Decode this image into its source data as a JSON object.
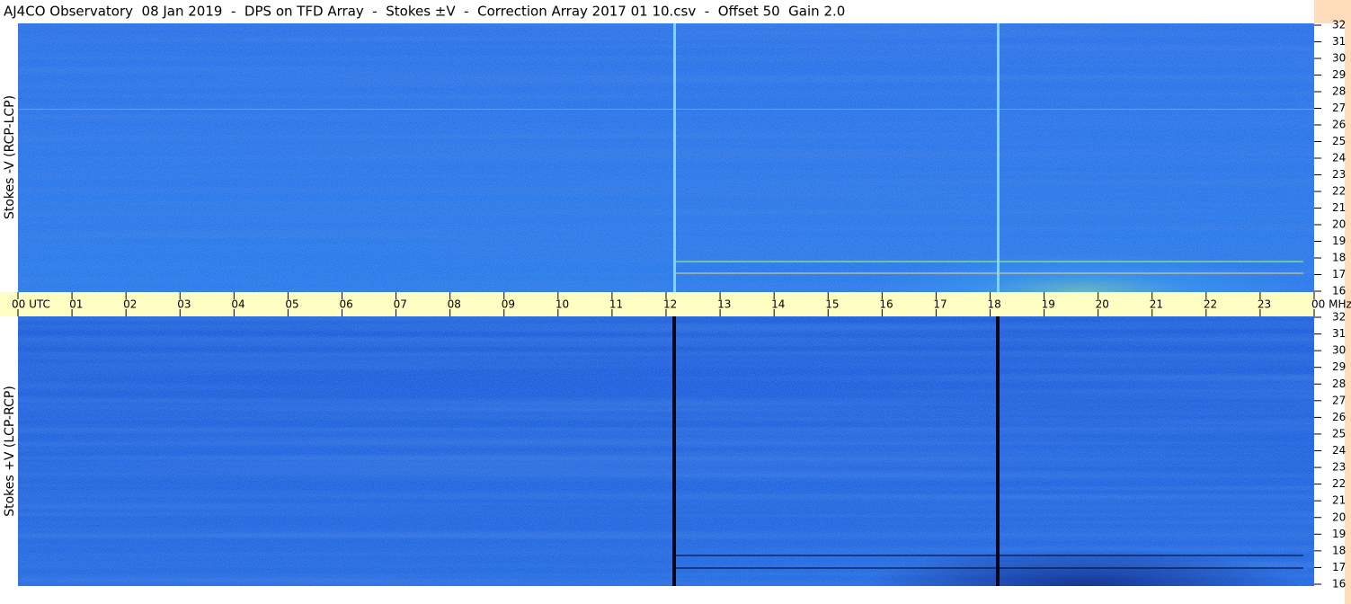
{
  "title": "AJ4CO Observatory  08 Jan 2019  -  DPS on TFD Array  -  Stokes ±V  -  Correction Array 2017 01 10.csv  -  Offset 50  Gain 2.0",
  "panels": [
    {
      "label": "Stokes -V (RCP-LCP)"
    },
    {
      "label": "Stokes +V (LCP-RCP)"
    }
  ],
  "time_axis": {
    "labels": [
      "00 UTC",
      "01",
      "02",
      "03",
      "04",
      "05",
      "06",
      "07",
      "08",
      "09",
      "10",
      "11",
      "12",
      "13",
      "14",
      "15",
      "16",
      "17",
      "18",
      "19",
      "20",
      "21",
      "22",
      "23",
      "00 MHz"
    ]
  },
  "frequency_axis": {
    "labels": [
      16,
      17,
      18,
      19,
      20,
      21,
      22,
      23,
      24,
      25,
      26,
      27,
      28,
      29,
      30,
      31,
      32
    ]
  }
}
